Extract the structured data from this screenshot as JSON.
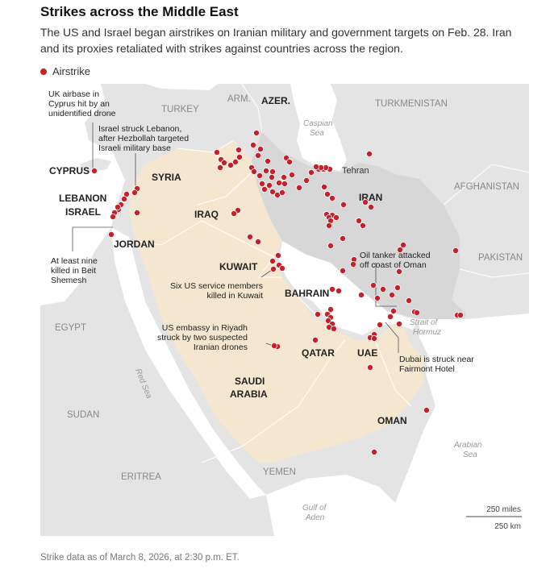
{
  "header": {
    "title": "Strikes across the Middle East",
    "subtitle": "The US and Israel began airstrikes on Iranian military and government targets on Feb. 28. Iran and its proxies retaliated with strikes against countries across the region."
  },
  "legend": {
    "label": "Airstrike",
    "color": "#c8202a"
  },
  "colors": {
    "background_land": "#e4e4e4",
    "iran_land": "#d7d7d7",
    "gulf_states_land": "#f4e6cf",
    "water": "#ffffff",
    "strike": "#c8202a"
  },
  "map": {
    "countries_bold": {
      "iran": "IRAN",
      "iraq": "IRAQ",
      "syria": "SYRIA",
      "lebanon": "LEBANON",
      "israel": "ISRAEL",
      "jordan": "JORDAN",
      "kuwait": "KUWAIT",
      "bahrain": "BAHRAIN",
      "qatar": "QATAR",
      "uae": "UAE",
      "saudi_line1": "SAUDI",
      "saudi_line2": "ARABIA",
      "oman": "OMAN",
      "cyprus": "CYPRUS",
      "azer": "AZER."
    },
    "countries_grey": {
      "turkey": "TURKEY",
      "arm": "ARM.",
      "turkmenistan": "TURKMENISTAN",
      "afghanistan": "AFGHANISTAN",
      "pakistan": "PAKISTAN",
      "egypt": "EGYPT",
      "sudan": "SUDAN",
      "eritrea": "ERITREA",
      "yemen": "YEMEN"
    },
    "cities": {
      "tehran": "Tehran"
    },
    "water_bodies": {
      "caspian_1": "Caspian",
      "caspian_2": "Sea",
      "red_sea": "Red Sea",
      "strait_1": "Strait of",
      "strait_2": "Hormuz",
      "arabian_1": "Arabian",
      "arabian_2": "Sea",
      "aden_1": "Gulf of",
      "aden_2": "Aden"
    },
    "annotations": {
      "cyprus_1": "UK airbase in",
      "cyprus_2": "Cyprus hit by an",
      "cyprus_3": "unidentified drone",
      "lebanon_1": "Israel struck Lebanon,",
      "lebanon_2": "after Hezbollah targeted",
      "lebanon_3": "Israeli military base",
      "shemesh_1": "At least nine",
      "shemesh_2": "killed in Beit",
      "shemesh_3": "Shemesh",
      "kuwait_1": "Six US service members",
      "kuwait_2": "killed in Kuwait",
      "riyadh_1": "US embassy in Riyadh",
      "riyadh_2": "struck by two suspected",
      "riyadh_3": "Iranian drones",
      "oman_1": "Oil tanker attacked",
      "oman_2": "off coast of Oman",
      "dubai_1": "Dubai is struck near",
      "dubai_2": "Fairmont Hotel"
    },
    "scale": {
      "miles": "250 miles",
      "km": "250 km"
    }
  },
  "footnote": "Strike data as of March 8, 2026, at 2:30 p.m. ET."
}
